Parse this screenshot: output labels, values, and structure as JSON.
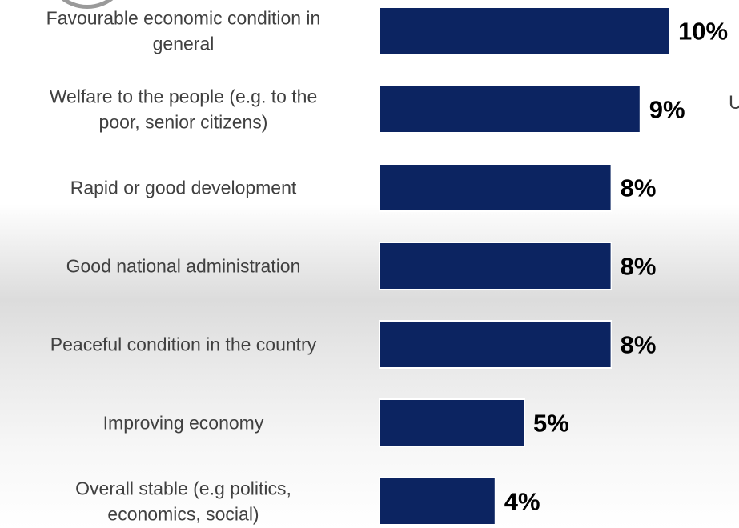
{
  "chart_data": {
    "type": "bar",
    "orientation": "horizontal",
    "categories": [
      "Favourable economic condition in general",
      "Welfare to the people (e.g. to the poor, senior citizens)",
      "Rapid or good development",
      "Good national administration",
      "Peaceful condition in the country",
      "Improving economy",
      "Overall stable (e.g politics, economics, social)"
    ],
    "category_lines": [
      [
        "Favourable economic condition in",
        "general"
      ],
      [
        "Welfare to the people (e.g. to the",
        "poor, senior citizens)"
      ],
      [
        "Rapid or good development"
      ],
      [
        "Good national administration"
      ],
      [
        "Peaceful condition in the country"
      ],
      [
        "Improving economy"
      ],
      [
        "Overall stable (e.g politics,",
        "economics, social)"
      ]
    ],
    "values": [
      10,
      9,
      8,
      8,
      8,
      5,
      4
    ],
    "value_labels": [
      "10%",
      "9%",
      "8%",
      "8%",
      "8%",
      "5%",
      "4%"
    ],
    "unit": "%",
    "xlim": [
      0,
      10
    ],
    "bar_color": "#0c2461",
    "grid": false
  },
  "decor": {
    "edge_text": "U"
  }
}
